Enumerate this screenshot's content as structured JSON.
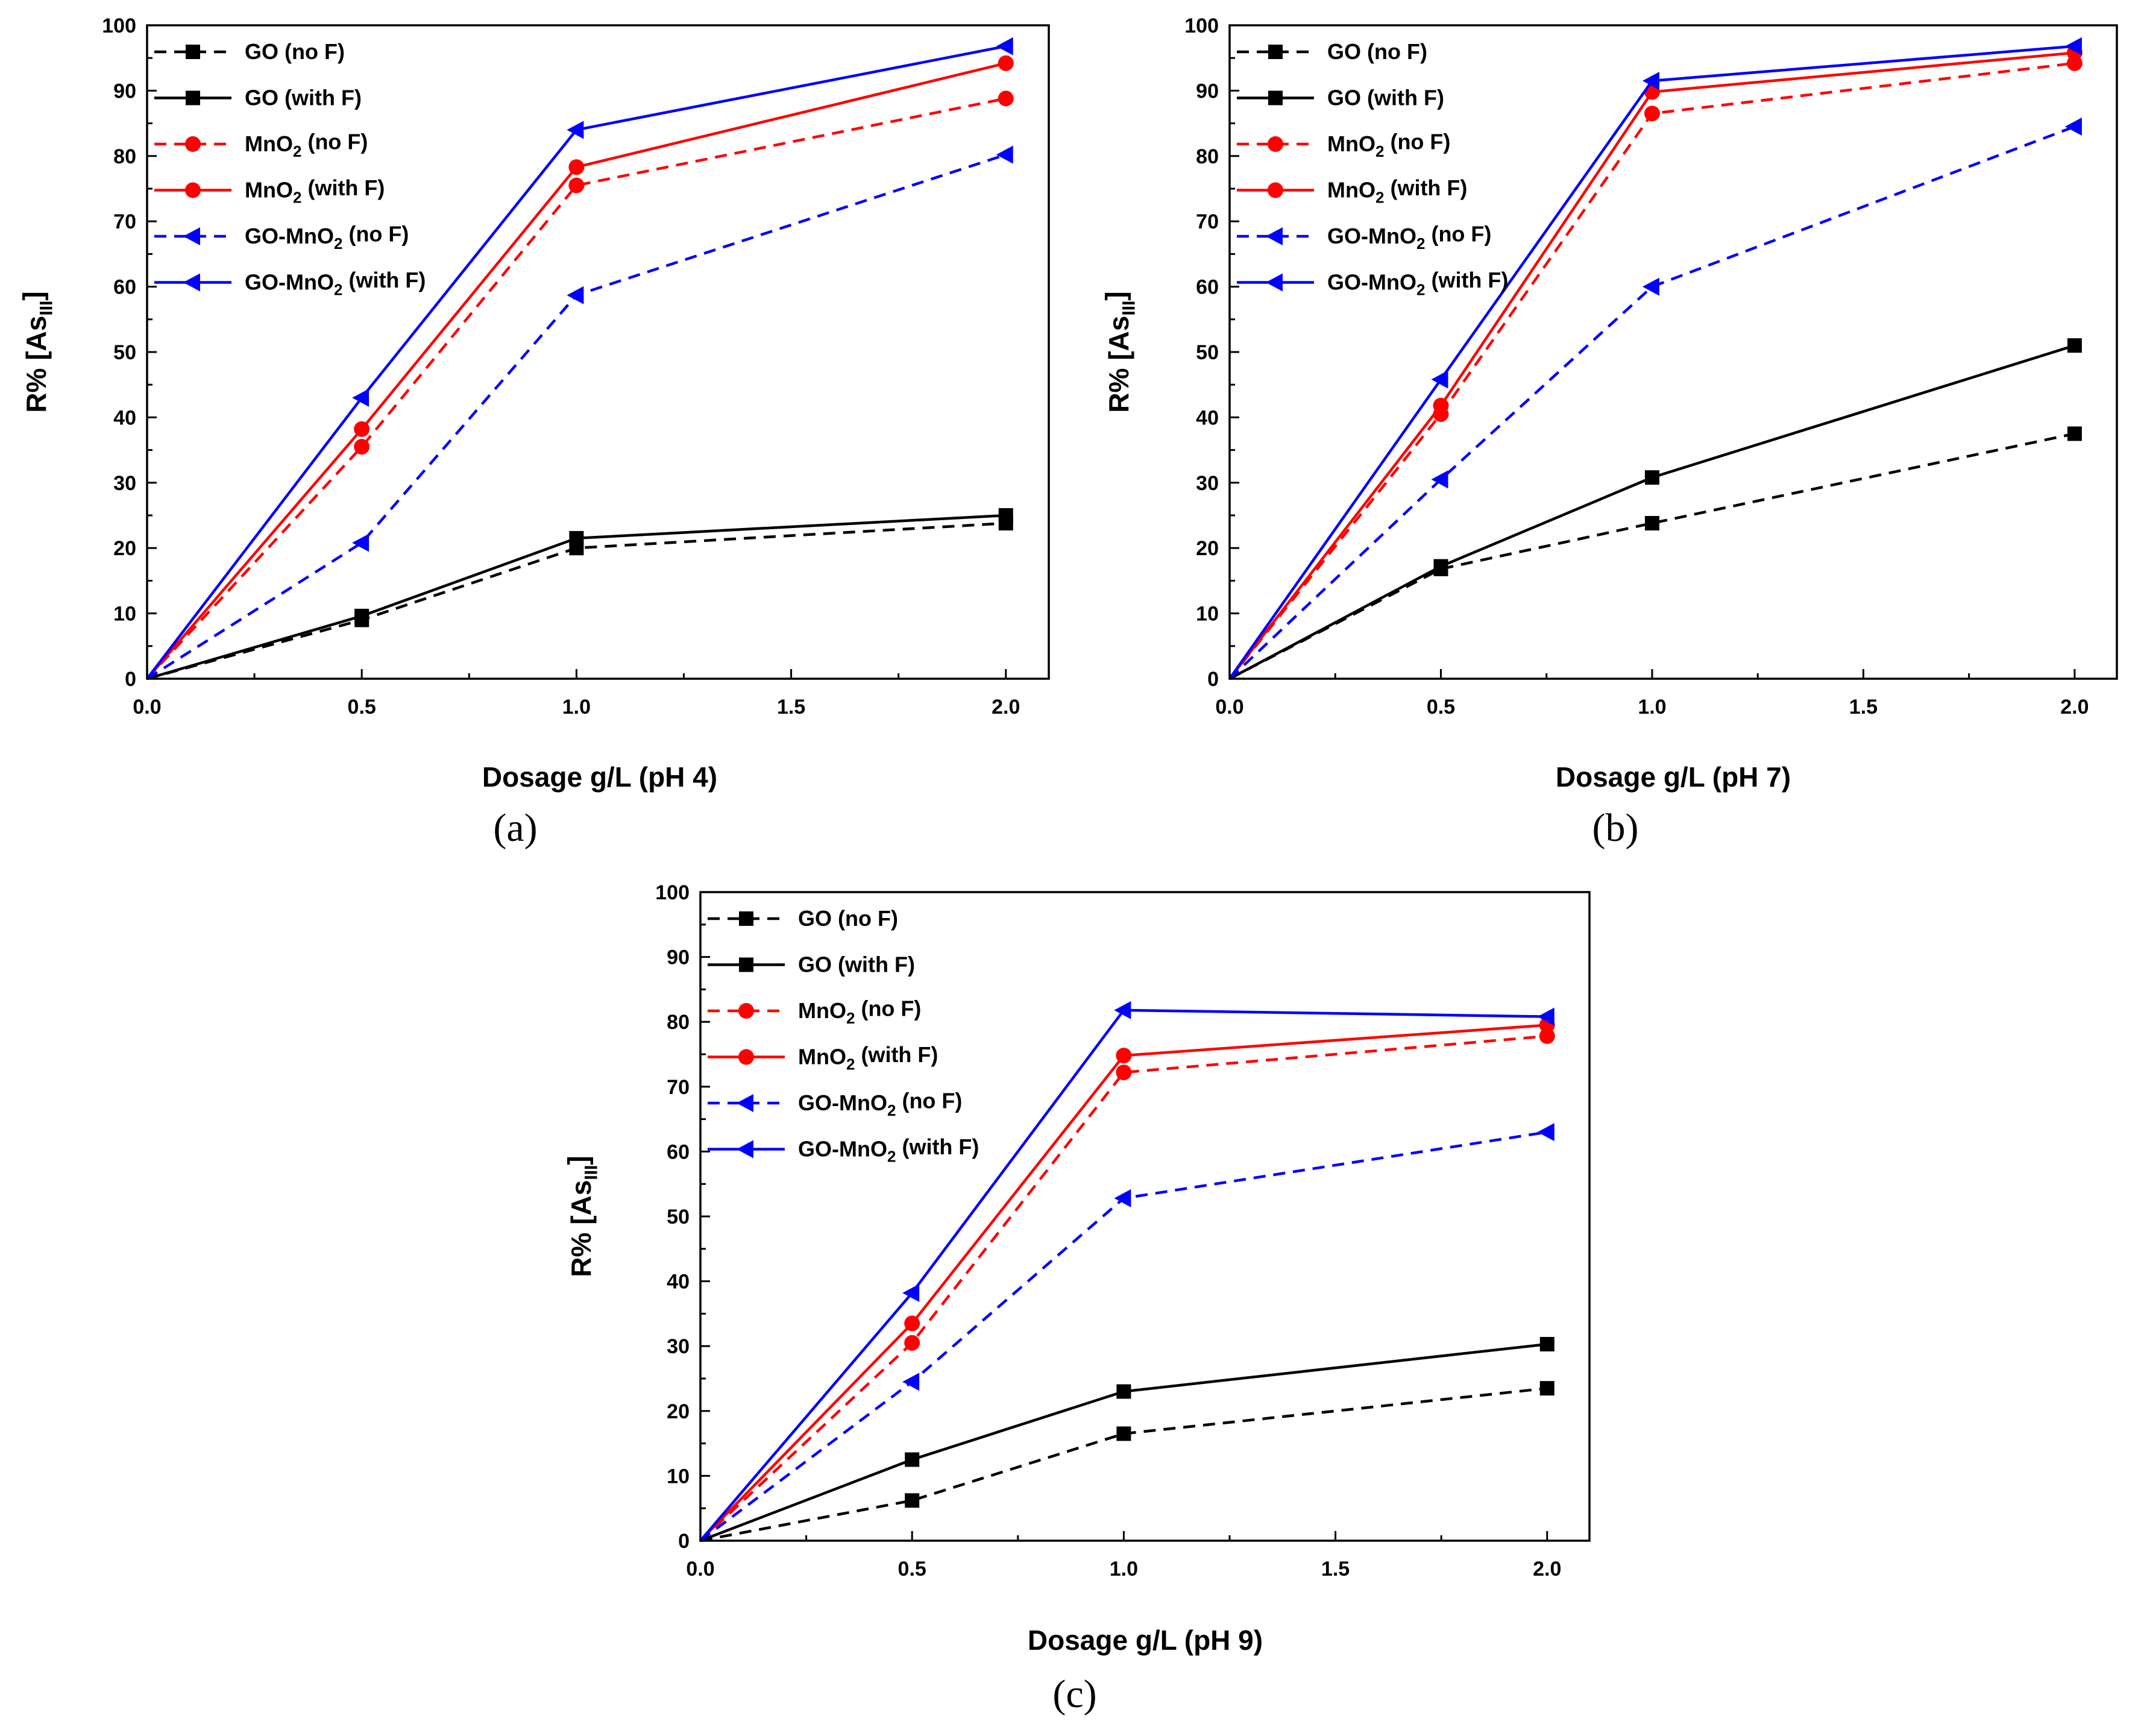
{
  "figure": {
    "series_styles": [
      {
        "name": "GO (no F)",
        "color": "#000000",
        "dashed": true,
        "marker": "square"
      },
      {
        "name": "GO (with F)",
        "color": "#000000",
        "dashed": false,
        "marker": "square"
      },
      {
        "name": "MnO2 (no F)",
        "color": "#ff0000",
        "dashed": true,
        "marker": "circle"
      },
      {
        "name": "MnO2 (with F)",
        "color": "#ff0000",
        "dashed": false,
        "marker": "circle"
      },
      {
        "name": "GO-MnO2 (no F)",
        "color": "#0000ff",
        "dashed": true,
        "marker": "triangle-left"
      },
      {
        "name": "GO-MnO2 (with F)",
        "color": "#0000ff",
        "dashed": false,
        "marker": "triangle-left"
      }
    ],
    "legend_labels": [
      {
        "pre": "GO (no F)",
        "sub": "",
        "post": ""
      },
      {
        "pre": "GO (with F)",
        "sub": "",
        "post": ""
      },
      {
        "pre": "MnO",
        "sub": "2",
        "post": " (no F)"
      },
      {
        "pre": "MnO",
        "sub": "2",
        "post": " (with F)"
      },
      {
        "pre": "GO-MnO",
        "sub": "2",
        "post": " (no F)"
      },
      {
        "pre": "GO-MnO",
        "sub": "2",
        "post": " (with F)"
      }
    ],
    "ylabel": {
      "pre": "R% [As",
      "sub": "III",
      "post": "]"
    }
  },
  "chart_data": [
    {
      "type": "line",
      "panel_label": "(a)",
      "title": "",
      "xlabel": "Dosage g/L (pH 4)",
      "ylabel": "R% [AsIII]",
      "xlim": [
        0,
        2.1
      ],
      "ylim": [
        0,
        100
      ],
      "xticks": [
        "0.0",
        "0.5",
        "1.0",
        "1.5",
        "2.0"
      ],
      "yticks": [
        "0",
        "10",
        "20",
        "30",
        "40",
        "50",
        "60",
        "70",
        "80",
        "90",
        "100"
      ],
      "legend_position": "top-left",
      "x": [
        0,
        0.5,
        1.0,
        2.0
      ],
      "series": [
        {
          "name": "GO (no F)",
          "values": [
            0,
            9.0,
            20.0,
            23.8
          ]
        },
        {
          "name": "GO (with F)",
          "values": [
            0,
            9.6,
            21.5,
            25.0
          ]
        },
        {
          "name": "MnO2 (no F)",
          "values": [
            0,
            35.5,
            75.5,
            88.8
          ]
        },
        {
          "name": "MnO2 (with F)",
          "values": [
            0,
            38.2,
            78.3,
            94.2
          ]
        },
        {
          "name": "GO-MnO2 (no F)",
          "values": [
            0,
            20.8,
            58.7,
            80.2
          ]
        },
        {
          "name": "GO-MnO2 (with F)",
          "values": [
            0,
            43.0,
            84.0,
            96.8
          ]
        }
      ]
    },
    {
      "type": "line",
      "panel_label": "(b)",
      "title": "",
      "xlabel": "Dosage g/L (pH 7)",
      "ylabel": "R% [AsIII]",
      "xlim": [
        0,
        2.1
      ],
      "ylim": [
        0,
        100
      ],
      "xticks": [
        "0.0",
        "0.5",
        "1.0",
        "1.5",
        "2.0"
      ],
      "yticks": [
        "0",
        "10",
        "20",
        "30",
        "40",
        "50",
        "60",
        "70",
        "80",
        "90",
        "100"
      ],
      "legend_position": "top-left",
      "x": [
        0,
        0.5,
        1.0,
        2.0
      ],
      "series": [
        {
          "name": "GO (no F)",
          "values": [
            0,
            16.8,
            23.8,
            37.5
          ]
        },
        {
          "name": "GO (with F)",
          "values": [
            0,
            17.2,
            30.8,
            51.0
          ]
        },
        {
          "name": "MnO2 (no F)",
          "values": [
            0,
            40.5,
            86.5,
            94.2
          ]
        },
        {
          "name": "MnO2 (with F)",
          "values": [
            0,
            41.8,
            89.8,
            95.8
          ]
        },
        {
          "name": "GO-MnO2 (no F)",
          "values": [
            0,
            30.5,
            60.0,
            84.5
          ]
        },
        {
          "name": "GO-MnO2 (with F)",
          "values": [
            0,
            45.8,
            91.5,
            96.8
          ]
        }
      ]
    },
    {
      "type": "line",
      "panel_label": "(c)",
      "title": "",
      "xlabel": "Dosage g/L (pH 9)",
      "ylabel": "R% [AsIII]",
      "xlim": [
        0,
        2.1
      ],
      "ylim": [
        0,
        100
      ],
      "xticks": [
        "0.0",
        "0.5",
        "1.0",
        "1.5",
        "2.0"
      ],
      "yticks": [
        "0",
        "10",
        "20",
        "30",
        "40",
        "50",
        "60",
        "70",
        "80",
        "90",
        "100"
      ],
      "legend_position": "top-left",
      "x": [
        0,
        0.5,
        1.0,
        2.0
      ],
      "series": [
        {
          "name": "GO (no F)",
          "values": [
            0,
            6.2,
            16.5,
            23.5
          ]
        },
        {
          "name": "GO (with F)",
          "values": [
            0,
            12.5,
            23.0,
            30.3
          ]
        },
        {
          "name": "MnO2 (no F)",
          "values": [
            0,
            30.5,
            72.2,
            77.8
          ]
        },
        {
          "name": "MnO2 (with F)",
          "values": [
            0,
            33.5,
            74.8,
            79.5
          ]
        },
        {
          "name": "GO-MnO2 (no F)",
          "values": [
            0,
            24.5,
            52.8,
            63.0
          ]
        },
        {
          "name": "GO-MnO2 (with F)",
          "values": [
            0,
            38.2,
            81.8,
            80.8
          ]
        }
      ]
    }
  ]
}
